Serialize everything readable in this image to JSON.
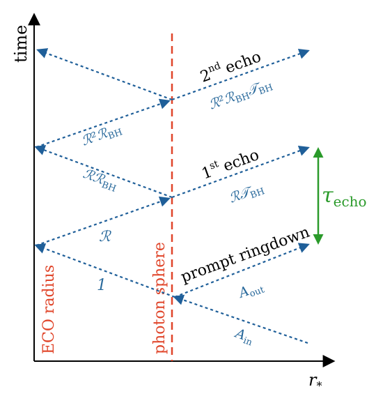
{
  "axes": {
    "y_label": "time",
    "x_label": "r",
    "x_label_sub": "*"
  },
  "vertical_labels": {
    "eco_radius": "ECO radius",
    "photon_sphere": "photon sphere"
  },
  "labels": {
    "second_echo_main": "2",
    "second_echo_sup": "nd",
    "second_echo_word": "echo",
    "first_echo_main": "1",
    "first_echo_sup": "st",
    "first_echo_word": "echo",
    "prompt_ringdown": "prompt ringdown",
    "r2rbhtbh": "ℛ²ℛ",
    "r2rbhtbh_sub1": "BH",
    "r2rbhtbh_t": "𝒯",
    "r2rbhtbh_sub2": "BH",
    "r2rbh": "ℛ²ℛ",
    "r2rbh_sub": "BH",
    "rrbh": "ℛℛ",
    "rrbh_sub": "BH",
    "rtbh": "ℛ𝒯",
    "rtbh_sub": "BH",
    "r": "ℛ",
    "one": "1",
    "aout": "A",
    "aout_sub": "out",
    "ain": "A",
    "ain_sub": "in",
    "tau": "τ",
    "tau_sub": "echo"
  },
  "colors": {
    "ray": "#1f5f99",
    "photon_sphere": "#e0452a",
    "tau": "#2a9a2a",
    "axis": "#000000"
  }
}
